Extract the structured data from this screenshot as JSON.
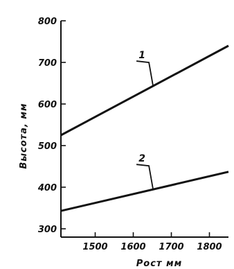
{
  "chart_data": {
    "type": "line",
    "xlabel": "Рост мм",
    "ylabel": "Высота, мм",
    "xlim": [
      1410,
      1850
    ],
    "ylim": [
      280,
      800
    ],
    "x_ticks": [
      1500,
      1600,
      1700,
      1800
    ],
    "y_ticks": [
      300,
      400,
      500,
      600,
      700,
      800
    ],
    "grid": false,
    "legend": "none",
    "line_color": "#111111",
    "series": [
      {
        "name": "1",
        "x": [
          1410,
          1850
        ],
        "y": [
          525,
          740
        ]
      },
      {
        "name": "2",
        "x": [
          1410,
          1850
        ],
        "y": [
          343,
          437
        ]
      }
    ]
  }
}
